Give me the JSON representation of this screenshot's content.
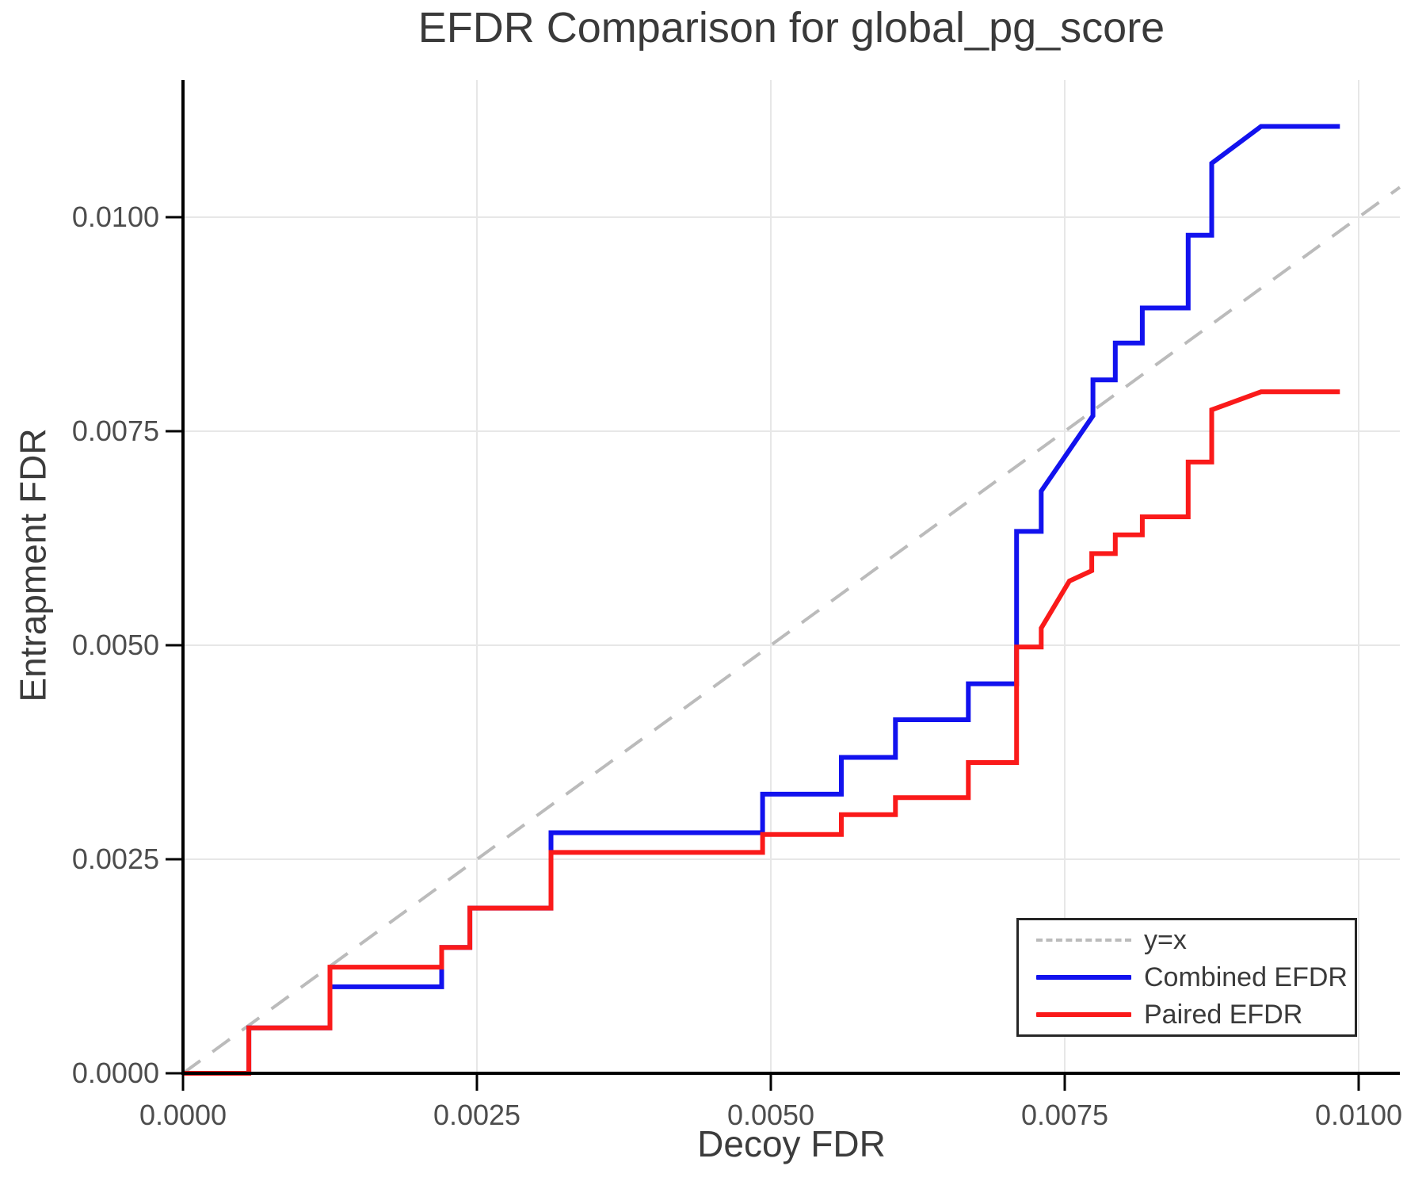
{
  "title": "EFDR Comparison for global_pg_score",
  "chart_data": {
    "type": "line",
    "subtype": "step-curves",
    "title": "EFDR Comparison for global_pg_score",
    "xlabel": "Decoy FDR",
    "ylabel": "Entrapment FDR",
    "xlim": [
      0.0,
      0.01035
    ],
    "ylim": [
      0.0,
      0.0116
    ],
    "grid": true,
    "legend_position": "lower right",
    "x_ticks": [
      {
        "value": 0.0,
        "label": "0.0000"
      },
      {
        "value": 0.0025,
        "label": "0.0025"
      },
      {
        "value": 0.005,
        "label": "0.0050"
      },
      {
        "value": 0.0075,
        "label": "0.0075"
      },
      {
        "value": 0.01,
        "label": "0.0100"
      }
    ],
    "y_ticks": [
      {
        "value": 0.0,
        "label": "0.0000"
      },
      {
        "value": 0.0025,
        "label": "0.0025"
      },
      {
        "value": 0.005,
        "label": "0.0050"
      },
      {
        "value": 0.0075,
        "label": "0.0075"
      },
      {
        "value": 0.01,
        "label": "0.0100"
      }
    ],
    "reference_line": {
      "label": "y=x",
      "style": "dashed",
      "color": "#bbbbbb",
      "points": [
        [
          0.0,
          0.0
        ],
        [
          0.01035,
          0.01035
        ]
      ]
    },
    "series": [
      {
        "name": "Combined EFDR",
        "color": "#1212ee",
        "points": [
          [
            0.0,
            0.0
          ],
          [
            0.00056,
            0.0
          ],
          [
            0.00056,
            0.00053
          ],
          [
            0.00125,
            0.00053
          ],
          [
            0.00125,
            0.00101
          ],
          [
            0.0022,
            0.00101
          ],
          [
            0.0022,
            0.00147
          ],
          [
            0.00244,
            0.00147
          ],
          [
            0.00244,
            0.00193
          ],
          [
            0.00313,
            0.00193
          ],
          [
            0.00313,
            0.00281
          ],
          [
            0.00493,
            0.00281
          ],
          [
            0.00493,
            0.00326
          ],
          [
            0.0056,
            0.00326
          ],
          [
            0.0056,
            0.00369
          ],
          [
            0.00606,
            0.00369
          ],
          [
            0.00606,
            0.00413
          ],
          [
            0.00668,
            0.00413
          ],
          [
            0.00668,
            0.00455
          ],
          [
            0.00709,
            0.00455
          ],
          [
            0.00709,
            0.00633
          ],
          [
            0.0073,
            0.00633
          ],
          [
            0.0073,
            0.0068
          ],
          [
            0.00774,
            0.00768
          ],
          [
            0.00774,
            0.0081
          ],
          [
            0.00793,
            0.0081
          ],
          [
            0.00793,
            0.00853
          ],
          [
            0.00816,
            0.00853
          ],
          [
            0.00816,
            0.00894
          ],
          [
            0.00855,
            0.00894
          ],
          [
            0.00855,
            0.00979
          ],
          [
            0.00875,
            0.00979
          ],
          [
            0.00875,
            0.01063
          ],
          [
            0.00917,
            0.01106
          ],
          [
            0.00984,
            0.01106
          ]
        ]
      },
      {
        "name": "Paired EFDR",
        "color": "#fa1a1a",
        "points": [
          [
            0.0,
            0.0
          ],
          [
            0.00056,
            0.0
          ],
          [
            0.00056,
            0.00053
          ],
          [
            0.00125,
            0.00053
          ],
          [
            0.00125,
            0.00124
          ],
          [
            0.0022,
            0.00124
          ],
          [
            0.0022,
            0.00147
          ],
          [
            0.00244,
            0.00147
          ],
          [
            0.00244,
            0.00193
          ],
          [
            0.00313,
            0.00193
          ],
          [
            0.00313,
            0.00258
          ],
          [
            0.00493,
            0.00258
          ],
          [
            0.00493,
            0.00279
          ],
          [
            0.0056,
            0.00279
          ],
          [
            0.0056,
            0.00302
          ],
          [
            0.00606,
            0.00302
          ],
          [
            0.00606,
            0.00322
          ],
          [
            0.00668,
            0.00322
          ],
          [
            0.00668,
            0.00363
          ],
          [
            0.00709,
            0.00363
          ],
          [
            0.00709,
            0.00498
          ],
          [
            0.0073,
            0.00498
          ],
          [
            0.0073,
            0.0052
          ],
          [
            0.00754,
            0.00575
          ],
          [
            0.00773,
            0.00587
          ],
          [
            0.00773,
            0.00607
          ],
          [
            0.00793,
            0.00607
          ],
          [
            0.00793,
            0.00629
          ],
          [
            0.00816,
            0.00629
          ],
          [
            0.00816,
            0.0065
          ],
          [
            0.00855,
            0.0065
          ],
          [
            0.00855,
            0.00714
          ],
          [
            0.00875,
            0.00714
          ],
          [
            0.00875,
            0.00775
          ],
          [
            0.00917,
            0.00796
          ],
          [
            0.00984,
            0.00796
          ]
        ]
      }
    ],
    "colors": {
      "grid": "#e7e7e7",
      "spine": "#000000",
      "tick_label": "#4d4d4d",
      "text": "#3a3a3a"
    }
  },
  "legend": {
    "items": [
      {
        "label": "y=x"
      },
      {
        "label": "Combined EFDR"
      },
      {
        "label": "Paired EFDR"
      }
    ]
  }
}
